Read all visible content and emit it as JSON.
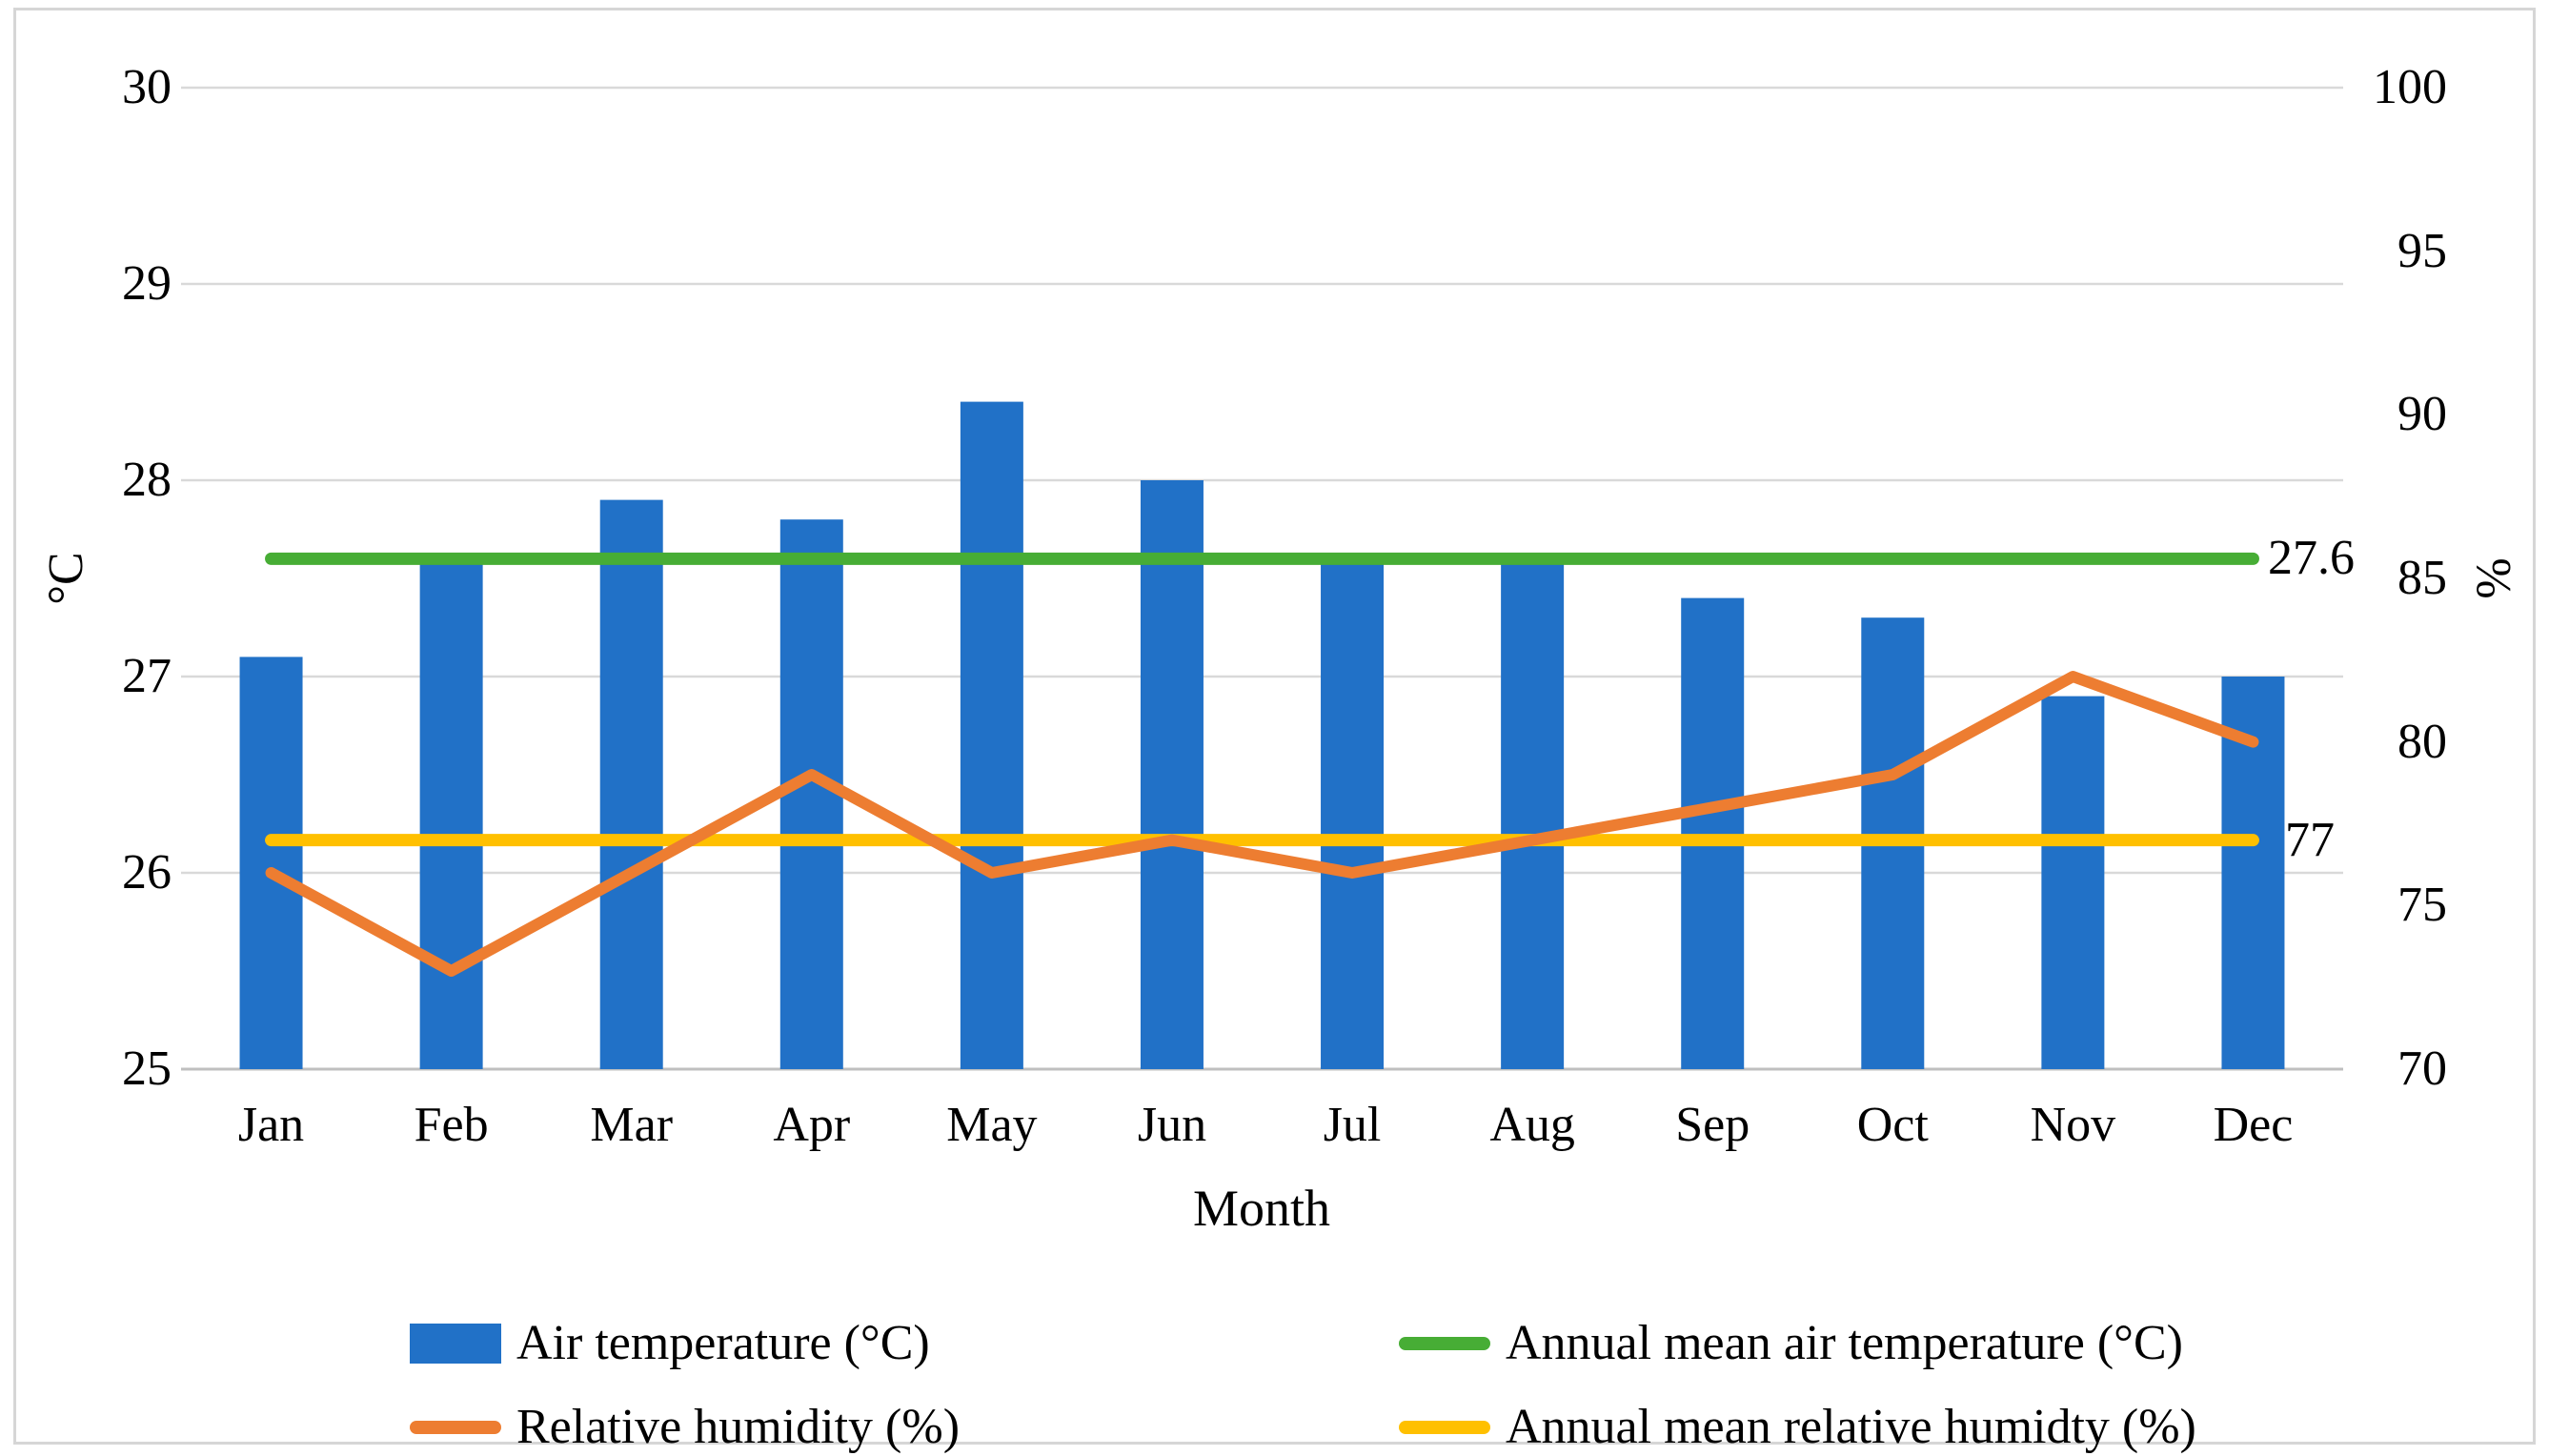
{
  "figure": {
    "y_left": {
      "title": "°C",
      "ticks": [
        30,
        29,
        28,
        27,
        26,
        25
      ]
    },
    "y_right": {
      "title": "%",
      "ticks": [
        100,
        95,
        90,
        85,
        80,
        75,
        70
      ]
    },
    "x": {
      "title": "Month"
    },
    "annotations": {
      "mean_temp": "27.6",
      "mean_humidity": "77"
    },
    "legend": [
      {
        "label": "Air temperature (°C)",
        "swatch": "bar",
        "color": "#2171c7"
      },
      {
        "label": "Relative humidity (%)",
        "swatch": "line",
        "color": "#ed7d31"
      },
      {
        "label": "Annual mean air temperature (°C)",
        "swatch": "line",
        "color": "#47ad35"
      },
      {
        "label": "Annual mean relative humidty (%)",
        "swatch": "line",
        "color": "#ffc000"
      }
    ]
  },
  "chart_data": {
    "type": "bar+line combo, dual axis",
    "categories": [
      "Jan",
      "Feb",
      "Mar",
      "Apr",
      "May",
      "Jun",
      "Jul",
      "Aug",
      "Sep",
      "Oct",
      "Nov",
      "Dec"
    ],
    "series": [
      {
        "name": "Air temperature (°C)",
        "type": "bar",
        "axis": "left",
        "color": "#2171c7",
        "values": [
          27.1,
          27.6,
          27.9,
          27.8,
          28.4,
          28.0,
          27.6,
          27.6,
          27.4,
          27.3,
          26.9,
          27.0
        ]
      },
      {
        "name": "Relative humidity (%)",
        "type": "line",
        "axis": "right",
        "color": "#ed7d31",
        "values": [
          76,
          73,
          76,
          79,
          76,
          77,
          76,
          77,
          78,
          79,
          82,
          80
        ]
      },
      {
        "name": "Annual mean air temperature (°C)",
        "type": "hline",
        "axis": "left",
        "color": "#47ad35",
        "value": 27.6
      },
      {
        "name": "Annual mean relative humidty (%)",
        "type": "hline",
        "axis": "right",
        "color": "#ffc000",
        "value": 77
      }
    ],
    "left_axis": {
      "label": "°C",
      "range": [
        25,
        30
      ],
      "tick_step": 1
    },
    "right_axis": {
      "label": "%",
      "range": [
        70,
        100
      ],
      "tick_step": 5
    },
    "xlabel": "Month",
    "grid": "horizontal gridlines at left-axis ticks",
    "legend_position": "bottom, two columns",
    "gridline_color": "#d9d9d9",
    "axis_line_color": "#bfbfbf"
  }
}
